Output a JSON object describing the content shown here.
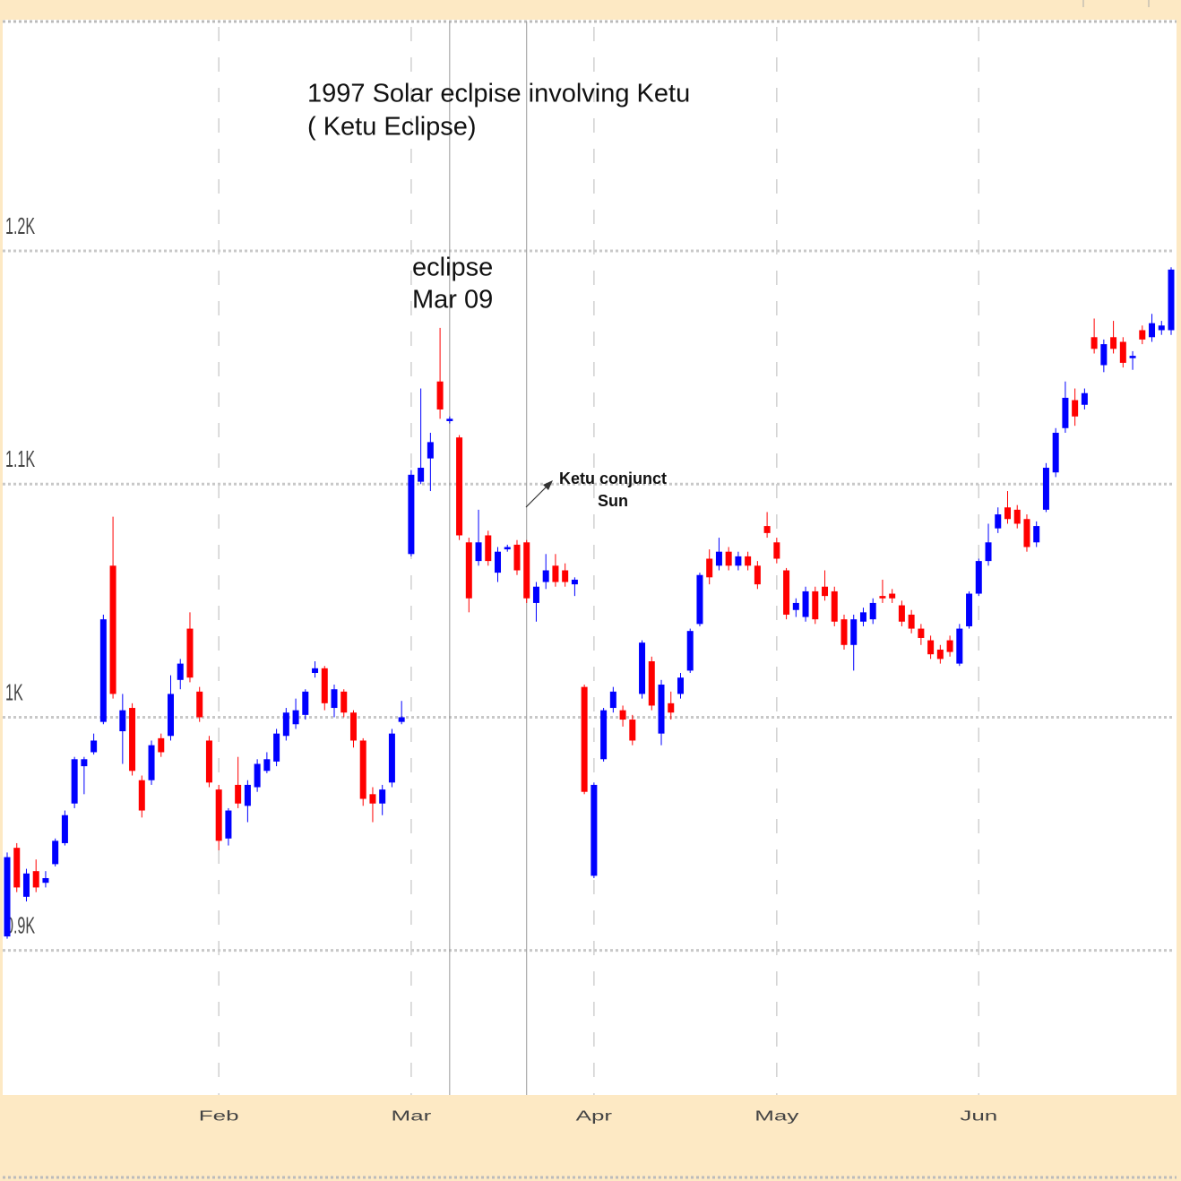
{
  "chart_data": {
    "type": "candlestick",
    "title": "1997 Solar eclpise involving Ketu",
    "subtitle": "( Ketu Eclipse)",
    "annotations": [
      {
        "lines": [
          "eclipse",
          "Mar 09"
        ]
      },
      {
        "lines": [
          "Ketu conjunct",
          "Sun"
        ]
      }
    ],
    "up_color": "#0000ff",
    "down_color": "#ff0000",
    "grid": true,
    "ylim": [
      838,
      1298
    ],
    "yticks": [
      {
        "value": 900,
        "label": "0.9K"
      },
      {
        "value": 1000,
        "label": "1K"
      },
      {
        "value": 1100,
        "label": "1.1K"
      },
      {
        "value": 1200,
        "label": "1.2K"
      }
    ],
    "categories": [
      null,
      null,
      null,
      null,
      null,
      null,
      null,
      null,
      null,
      null,
      null,
      null,
      null,
      null,
      null,
      null,
      null,
      null,
      null,
      null,
      null,
      null,
      "Feb",
      null,
      null,
      null,
      null,
      null,
      null,
      null,
      null,
      null,
      null,
      null,
      null,
      null,
      null,
      null,
      null,
      null,
      null,
      null,
      "Mar",
      null,
      null,
      null,
      null,
      null,
      null,
      null,
      null,
      null,
      null,
      null,
      null,
      null,
      null,
      null,
      null,
      null,
      null,
      "Apr",
      null,
      null,
      null,
      null,
      null,
      null,
      null,
      null,
      null,
      null,
      null,
      null,
      null,
      null,
      null,
      null,
      null,
      null,
      "May",
      null,
      null,
      null,
      null,
      null,
      null,
      null,
      null,
      null,
      null,
      null,
      null,
      null,
      null,
      null,
      null,
      null,
      null,
      null,
      null,
      "Jun",
      null,
      null,
      null,
      null,
      null,
      null,
      null,
      null,
      null,
      null,
      null,
      null,
      null,
      null,
      null,
      null,
      null,
      null,
      null,
      null
    ],
    "open": [
      906,
      944,
      923,
      934,
      929,
      937,
      946,
      963,
      979,
      985,
      998,
      1065,
      994,
      1004,
      973,
      973,
      991,
      992,
      1016,
      1038,
      1011,
      990,
      969,
      948,
      971,
      962,
      970,
      977,
      981,
      992,
      997,
      1001,
      1019,
      1021,
      1004,
      1011,
      1002,
      990,
      967,
      963,
      972,
      998,
      1070,
      1101,
      1111,
      1144,
      1127,
      1120,
      1075,
      1067,
      1078,
      1062,
      1072,
      1074,
      1075,
      1049,
      1058,
      1065,
      1063,
      1057,
      1013,
      932,
      982,
      1004,
      1003,
      999,
      1010,
      1024,
      993,
      1006,
      1010,
      1020,
      1040,
      1068,
      1065,
      1071,
      1065,
      1069,
      1065,
      1082,
      1075,
      1063,
      1046,
      1043,
      1054,
      1056,
      1054,
      1042,
      1031,
      1041,
      1042,
      1052,
      1053,
      1048,
      1044,
      1038,
      1033,
      1029,
      1033,
      1023,
      1039,
      1053,
      1067,
      1081,
      1090,
      1089,
      1085,
      1075,
      1089,
      1105,
      1124,
      1136,
      1134,
      1163,
      1151,
      1163,
      1161,
      1154,
      1166,
      1163,
      1166,
      1166
    ],
    "high": [
      942,
      946,
      935,
      939,
      934,
      948,
      960,
      983,
      983,
      993,
      1044,
      1086,
      1010,
      1006,
      975,
      990,
      993,
      1018,
      1025,
      1045,
      1013,
      992,
      971,
      961,
      983,
      973,
      982,
      985,
      995,
      1004,
      1008,
      1012,
      1024,
      1022,
      1014,
      1012,
      1003,
      991,
      970,
      971,
      995,
      1007,
      1106,
      1141,
      1122,
      1167,
      1129,
      1121,
      1077,
      1089,
      1080,
      1073,
      1074,
      1076,
      1076,
      1058,
      1070,
      1070,
      1066,
      1060,
      1014,
      972,
      1004,
      1013,
      1005,
      1001,
      1033,
      1026,
      1016,
      1011,
      1019,
      1038,
      1062,
      1072,
      1077,
      1073,
      1071,
      1071,
      1067,
      1088,
      1077,
      1064,
      1051,
      1056,
      1056,
      1063,
      1056,
      1044,
      1044,
      1047,
      1051,
      1059,
      1055,
      1050,
      1046,
      1040,
      1035,
      1031,
      1035,
      1040,
      1054,
      1068,
      1083,
      1090,
      1097,
      1091,
      1087,
      1084,
      1109,
      1124,
      1144,
      1141,
      1141,
      1171,
      1162,
      1170,
      1163,
      1157,
      1168,
      1173,
      1170,
      1193
    ],
    "low": [
      905,
      925,
      921,
      925,
      927,
      936,
      945,
      961,
      967,
      984,
      997,
      1008,
      980,
      975,
      957,
      971,
      983,
      990,
      1012,
      1015,
      998,
      970,
      943,
      945,
      961,
      955,
      968,
      976,
      979,
      990,
      995,
      999,
      1017,
      1003,
      1000,
      1000,
      987,
      962,
      955,
      958,
      970,
      997,
      1069,
      1100,
      1097,
      1128,
      1126,
      1076,
      1045,
      1065,
      1065,
      1058,
      1071,
      1061,
      1049,
      1041,
      1055,
      1056,
      1056,
      1052,
      967,
      931,
      981,
      1002,
      996,
      988,
      1008,
      1003,
      988,
      999,
      1008,
      1019,
      1039,
      1057,
      1063,
      1063,
      1063,
      1063,
      1055,
      1077,
      1066,
      1042,
      1043,
      1041,
      1040,
      1050,
      1039,
      1029,
      1020,
      1039,
      1040,
      1049,
      1049,
      1039,
      1036,
      1031,
      1025,
      1023,
      1026,
      1022,
      1038,
      1052,
      1065,
      1079,
      1083,
      1081,
      1071,
      1073,
      1088,
      1103,
      1122,
      1125,
      1132,
      1156,
      1148,
      1156,
      1150,
      1149,
      1160,
      1161,
      1164,
      1164
    ],
    "close": [
      940,
      927,
      933,
      927,
      931,
      947,
      958,
      982,
      982,
      990,
      1042,
      1010,
      1003,
      977,
      960,
      988,
      985,
      1010,
      1023,
      1017,
      1000,
      972,
      947,
      960,
      963,
      971,
      980,
      982,
      993,
      1002,
      1003,
      1011,
      1021,
      1006,
      1012,
      1002,
      990,
      965,
      963,
      969,
      993,
      1000,
      1104,
      1107,
      1118,
      1132,
      1128,
      1078,
      1051,
      1075,
      1067,
      1071,
      1073,
      1063,
      1051,
      1056,
      1063,
      1058,
      1058,
      1059,
      968,
      971,
      1003,
      1011,
      999,
      990,
      1032,
      1005,
      1014,
      1002,
      1017,
      1037,
      1061,
      1060,
      1071,
      1065,
      1069,
      1065,
      1057,
      1079,
      1068,
      1044,
      1049,
      1054,
      1042,
      1052,
      1041,
      1031,
      1042,
      1045,
      1049,
      1051,
      1051,
      1041,
      1038,
      1034,
      1027,
      1025,
      1028,
      1038,
      1053,
      1067,
      1075,
      1087,
      1085,
      1083,
      1073,
      1082,
      1107,
      1122,
      1137,
      1129,
      1139,
      1158,
      1160,
      1158,
      1152,
      1155,
      1162,
      1169,
      1168,
      1192
    ]
  }
}
